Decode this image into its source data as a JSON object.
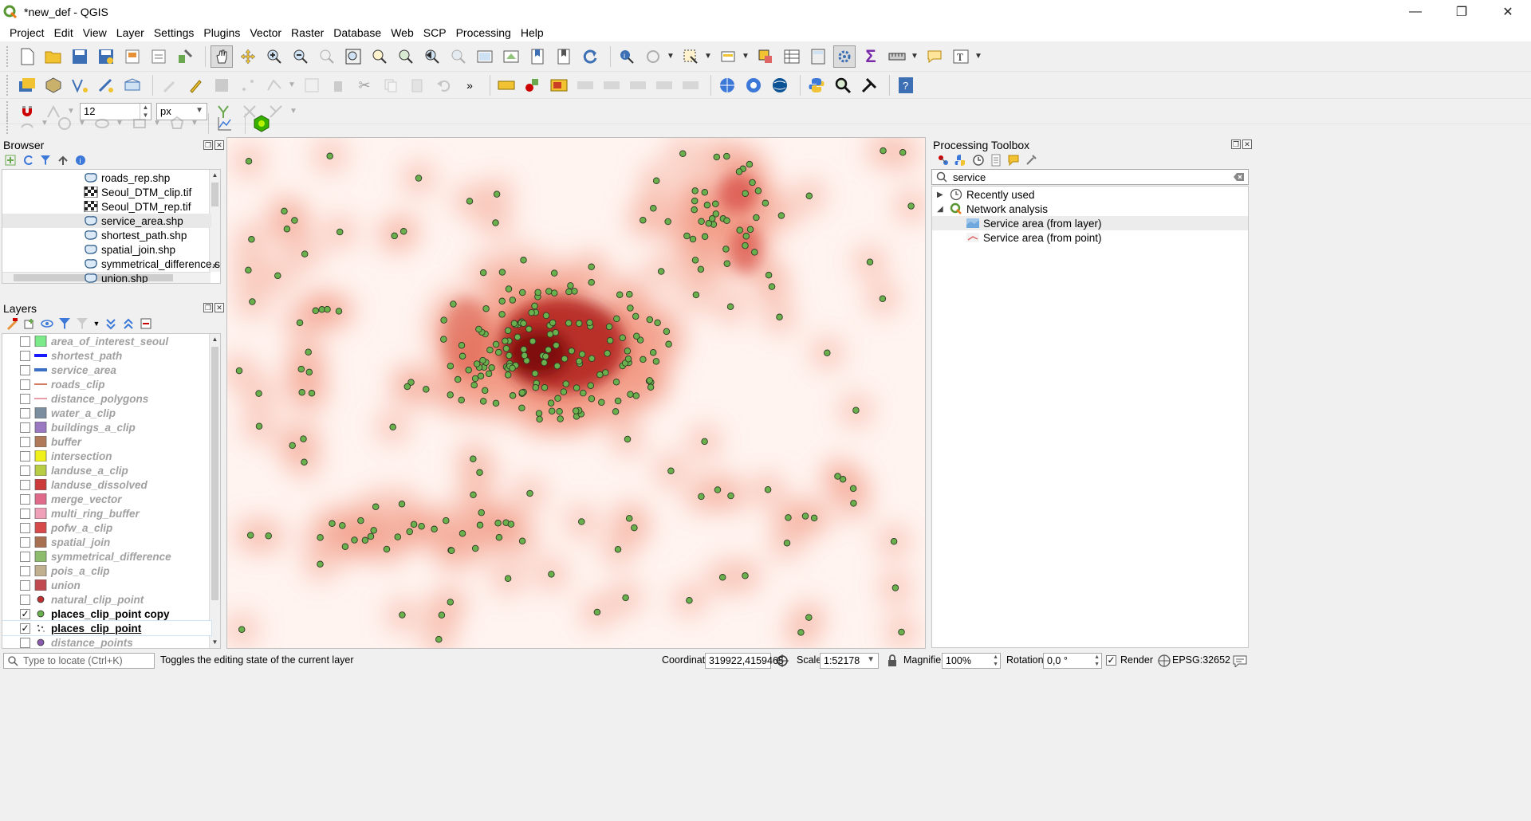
{
  "window": {
    "title": "*new_def - QGIS",
    "minimize_glyph": "—",
    "maximize_glyph": "❐",
    "close_glyph": "✕"
  },
  "menu": [
    "Project",
    "Edit",
    "View",
    "Layer",
    "Settings",
    "Plugins",
    "Vector",
    "Raster",
    "Database",
    "Web",
    "SCP",
    "Processing",
    "Help"
  ],
  "snapping": {
    "tolerance": "12",
    "units": "px"
  },
  "browser": {
    "title": "Browser",
    "items": [
      {
        "label": "roads_rep.shp",
        "type": "vector"
      },
      {
        "label": "Seoul_DTM_clip.tif",
        "type": "raster"
      },
      {
        "label": "Seoul_DTM_rep.tif",
        "type": "raster"
      },
      {
        "label": "service_area.shp",
        "type": "vector",
        "selected": true
      },
      {
        "label": "shortest_path.shp",
        "type": "vector"
      },
      {
        "label": "spatial_join.shp",
        "type": "vector"
      },
      {
        "label": "symmetrical_difference.sh",
        "type": "vector"
      },
      {
        "label": "union.shp",
        "type": "vector"
      }
    ]
  },
  "layers": {
    "title": "Layers",
    "items": [
      {
        "name": "area_of_interest_seoul",
        "symbol": "fill",
        "color": "#7dea8a",
        "checked": false
      },
      {
        "name": "shortest_path",
        "symbol": "line-thick",
        "color": "#1a1aff",
        "checked": false
      },
      {
        "name": "service_area",
        "symbol": "line-thick",
        "color": "#3b6fc4",
        "checked": false
      },
      {
        "name": "roads_clip",
        "symbol": "line",
        "color": "#c8502e",
        "checked": false
      },
      {
        "name": "distance_polygons",
        "symbol": "line",
        "color": "#e07a8a",
        "checked": false
      },
      {
        "name": "water_a_clip",
        "symbol": "fill",
        "color": "#7a8ea0",
        "checked": false
      },
      {
        "name": "buildings_a_clip",
        "symbol": "fill",
        "color": "#9a78c2",
        "checked": false
      },
      {
        "name": "buffer",
        "symbol": "fill",
        "color": "#b07a5a",
        "checked": false
      },
      {
        "name": "intersection",
        "symbol": "fill",
        "color": "#f0f01a",
        "checked": false
      },
      {
        "name": "landuse_a_clip",
        "symbol": "fill",
        "color": "#b8cc44",
        "checked": false
      },
      {
        "name": "landuse_dissolved",
        "symbol": "fill",
        "color": "#cc3a3a",
        "checked": false
      },
      {
        "name": "merge_vector",
        "symbol": "fill",
        "color": "#e06a8a",
        "checked": false
      },
      {
        "name": "multi_ring_buffer",
        "symbol": "fill",
        "color": "#f0a0b8",
        "checked": false
      },
      {
        "name": "pofw_a_clip",
        "symbol": "fill",
        "color": "#d64a4a",
        "checked": false
      },
      {
        "name": "spatial_join",
        "symbol": "fill",
        "color": "#a87050",
        "checked": false
      },
      {
        "name": "symmetrical_difference",
        "symbol": "fill",
        "color": "#8cbc6c",
        "checked": false
      },
      {
        "name": "pois_a_clip",
        "symbol": "fill",
        "color": "#c0b090",
        "checked": false
      },
      {
        "name": "union",
        "symbol": "fill",
        "color": "#c04a50",
        "checked": false
      },
      {
        "name": "natural_clip_point",
        "symbol": "point",
        "color": "#c03030",
        "checked": false
      },
      {
        "name": "places_clip_point copy",
        "symbol": "point",
        "color": "#6ab04c",
        "checked": true
      },
      {
        "name": "places_clip_point",
        "symbol": "heat",
        "color": "#555555",
        "checked": true,
        "current": true
      },
      {
        "name": "distance_points",
        "symbol": "point",
        "color": "#8a5ab0",
        "checked": false
      }
    ]
  },
  "toolbox": {
    "title": "Processing Toolbox",
    "search_value": "service",
    "tree": [
      {
        "label": "Recently used",
        "level": 0,
        "expanded": false,
        "icon": "clock-icon"
      },
      {
        "label": "Network analysis",
        "level": 0,
        "expanded": true,
        "icon": "qgis-icon"
      },
      {
        "label": "Service area (from layer)",
        "level": 1,
        "selected": true,
        "icon": "service-area-layer-icon"
      },
      {
        "label": "Service area (from point)",
        "level": 1,
        "icon": "service-area-point-icon"
      }
    ]
  },
  "status": {
    "locator_placeholder": "Type to locate (Ctrl+K)",
    "message": "Toggles the editing state of the current layer",
    "coordinate_label": "Coordinate",
    "coordinate": "319922,4159465",
    "scale_label": "Scale",
    "scale": "1:52178",
    "magnifier_label": "Magnifier",
    "magnifier": "100%",
    "rotation_label": "Rotation",
    "rotation": "0,0 °",
    "render_label": "Render",
    "render_checked": true,
    "crs": "EPSG:32652"
  }
}
